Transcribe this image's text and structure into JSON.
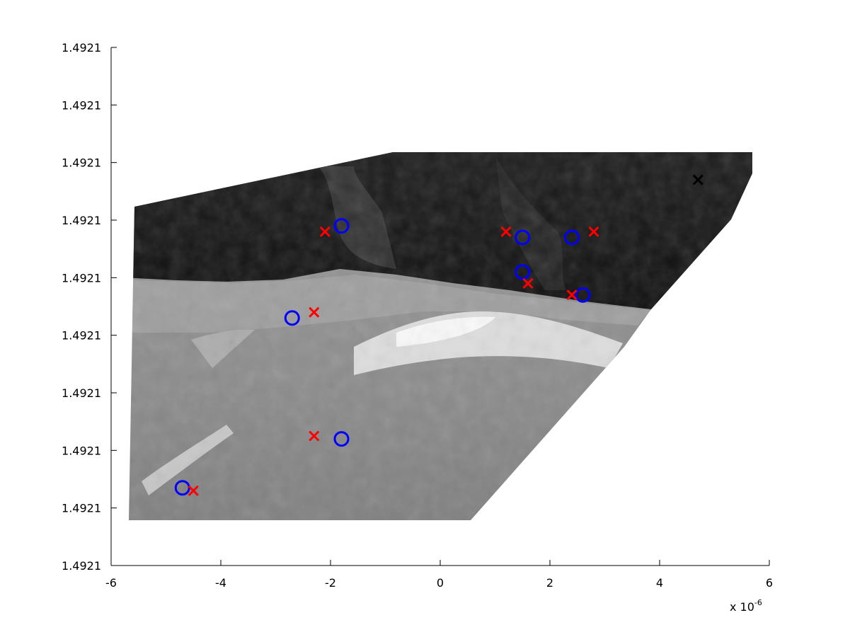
{
  "chart_data": {
    "type": "scatter",
    "title": "",
    "xlabel": "",
    "ylabel": "",
    "x_exponent_base": "x 10",
    "x_exponent_power": "-6",
    "xlim": [
      -6,
      6
    ],
    "x_ticks": [
      -6,
      -4,
      -2,
      0,
      2,
      4,
      6
    ],
    "x_tick_labels": [
      "-6",
      "-4",
      "-2",
      "0",
      "2",
      "4",
      "6"
    ],
    "y_ticks": [
      0,
      1,
      2,
      3,
      4,
      5,
      6,
      7,
      8,
      9
    ],
    "y_tick_labels": [
      "1.4921",
      "1.4921",
      "1.4921",
      "1.4921",
      "1.4921",
      "1.4921",
      "1.4921",
      "1.4921",
      "1.4921",
      "1.4921"
    ],
    "ylim": [
      0,
      9
    ],
    "background": "grayscale warped photographic image",
    "grid": false,
    "legend": "none",
    "series": [
      {
        "marker": "o",
        "color": "#0000ff",
        "points": [
          {
            "x": -1.8,
            "y": 5.9
          },
          {
            "x": 1.5,
            "y": 5.7
          },
          {
            "x": 2.4,
            "y": 5.7
          },
          {
            "x": 1.5,
            "y": 5.1
          },
          {
            "x": 2.6,
            "y": 4.7
          },
          {
            "x": -2.7,
            "y": 4.3
          },
          {
            "x": -1.8,
            "y": 2.2
          },
          {
            "x": -4.7,
            "y": 1.35
          }
        ]
      },
      {
        "marker": "x",
        "color": "#ff0000",
        "points": [
          {
            "x": -2.1,
            "y": 5.8
          },
          {
            "x": 1.2,
            "y": 5.8
          },
          {
            "x": 2.8,
            "y": 5.8
          },
          {
            "x": 1.6,
            "y": 4.9
          },
          {
            "x": 2.4,
            "y": 4.7
          },
          {
            "x": -2.3,
            "y": 4.4
          },
          {
            "x": -2.3,
            "y": 2.25
          },
          {
            "x": -4.5,
            "y": 1.3
          }
        ]
      },
      {
        "marker": "x",
        "color": "#000000",
        "points": [
          {
            "x": 4.7,
            "y": 6.7
          }
        ]
      }
    ]
  }
}
